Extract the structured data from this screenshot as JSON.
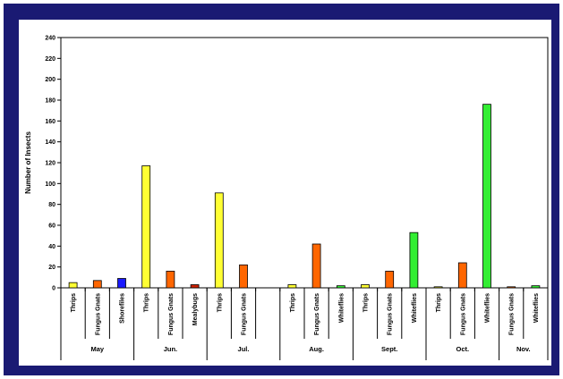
{
  "chart_data": {
    "type": "bar",
    "ylabel": "Number of Insects",
    "xlabel": "",
    "ylim": [
      0,
      240
    ],
    "yticks": [
      0,
      20,
      40,
      60,
      80,
      100,
      120,
      140,
      160,
      180,
      200,
      220,
      240
    ],
    "grid": false,
    "legend": "none",
    "groups": [
      {
        "month": "May",
        "bars": [
          {
            "label": "Thrips",
            "value": 5,
            "color": "#ffff33"
          },
          {
            "label": "Fungus Gnats",
            "value": 7,
            "color": "#ff6600"
          },
          {
            "label": "Shorefiles",
            "value": 9,
            "color": "#1a1aff"
          }
        ]
      },
      {
        "month": "Jun.",
        "bars": [
          {
            "label": "Thrips",
            "value": 117,
            "color": "#ffff33"
          },
          {
            "label": "Fungus Gnats",
            "value": 16,
            "color": "#ff6600"
          },
          {
            "label": "Mealybugs",
            "value": 3,
            "color": "#cc2200"
          }
        ]
      },
      {
        "month": "Jul.",
        "bars": [
          {
            "label": "Thrips",
            "value": 91,
            "color": "#ffff33"
          },
          {
            "label": "Fungus Gnats",
            "value": 22,
            "color": "#ff6600"
          },
          {
            "label": "",
            "value": null,
            "color": ""
          }
        ]
      },
      {
        "month": "Aug.",
        "bars": [
          {
            "label": "Thrips",
            "value": 3,
            "color": "#ffff33"
          },
          {
            "label": "Fungus Gnats",
            "value": 42,
            "color": "#ff6600"
          },
          {
            "label": "Whiteflies",
            "value": 2,
            "color": "#33ee33"
          }
        ]
      },
      {
        "month": "Sept.",
        "bars": [
          {
            "label": "Thrips",
            "value": 3,
            "color": "#ffff33"
          },
          {
            "label": "Fungus Gnats",
            "value": 16,
            "color": "#ff6600"
          },
          {
            "label": "Whiteflies",
            "value": 53,
            "color": "#33ee33"
          }
        ]
      },
      {
        "month": "Oct.",
        "bars": [
          {
            "label": "Thrips",
            "value": 1,
            "color": "#ffff33"
          },
          {
            "label": "Fungus Gnats",
            "value": 24,
            "color": "#ff6600"
          },
          {
            "label": "Whiteflies",
            "value": 176,
            "color": "#33ee33"
          }
        ]
      },
      {
        "month": "Nov.",
        "bars": [
          {
            "label": "Fungus Gnats",
            "value": 1,
            "color": "#ff6600"
          },
          {
            "label": "Whiteflies",
            "value": 2,
            "color": "#33ee33"
          }
        ]
      }
    ]
  }
}
